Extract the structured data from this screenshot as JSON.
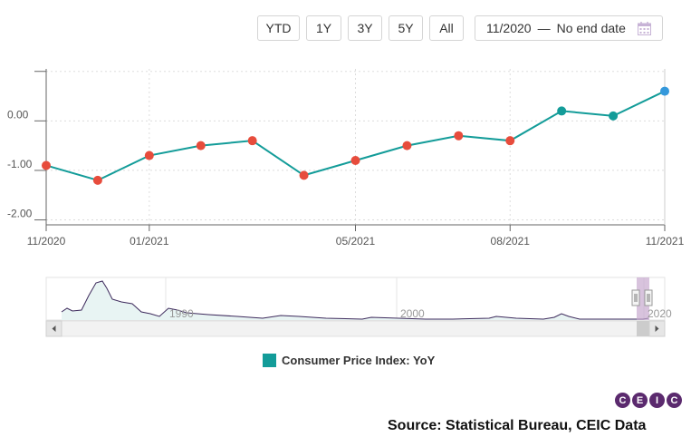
{
  "toolbar": {
    "ranges": [
      "YTD",
      "1Y",
      "3Y",
      "5Y",
      "All"
    ],
    "date_start": "11/2020",
    "date_separator": "—",
    "date_end": "No end date"
  },
  "legend": {
    "label": "Consumer Price Index: YoY",
    "color": "#139c99"
  },
  "logo": {
    "letters": [
      "C",
      "E",
      "I",
      "C"
    ]
  },
  "source": "Source: Statistical Bureau, CEIC Data",
  "chart_data": {
    "type": "line",
    "x": [
      "11/2020",
      "12/2020",
      "01/2021",
      "02/2021",
      "03/2021",
      "04/2021",
      "05/2021",
      "06/2021",
      "07/2021",
      "08/2021",
      "09/2021",
      "10/2021",
      "11/2021"
    ],
    "series": [
      {
        "name": "Consumer Price Index: YoY",
        "values": [
          -0.9,
          -1.2,
          -0.7,
          -0.5,
          -0.4,
          -1.1,
          -0.8,
          -0.5,
          -0.3,
          -0.4,
          0.2,
          0.1,
          0.6
        ]
      }
    ],
    "point_colors": [
      "#e74c3c",
      "#e74c3c",
      "#e74c3c",
      "#e74c3c",
      "#e74c3c",
      "#e74c3c",
      "#e74c3c",
      "#e74c3c",
      "#e74c3c",
      "#e74c3c",
      "#139c99",
      "#139c99",
      "#3498db"
    ],
    "line_color": "#139c99",
    "x_tick_labels": [
      "11/2020",
      "01/2021",
      "05/2021",
      "08/2021",
      "11/2021"
    ],
    "y_tick_labels": [
      "0.00",
      "-1.00",
      "-2.00"
    ],
    "ylim": [
      -2.1,
      1.05
    ],
    "grid": true,
    "navigator": {
      "year_labels": [
        "1990",
        "2000",
        "2020"
      ],
      "line_color": "#3d2a5c"
    }
  }
}
